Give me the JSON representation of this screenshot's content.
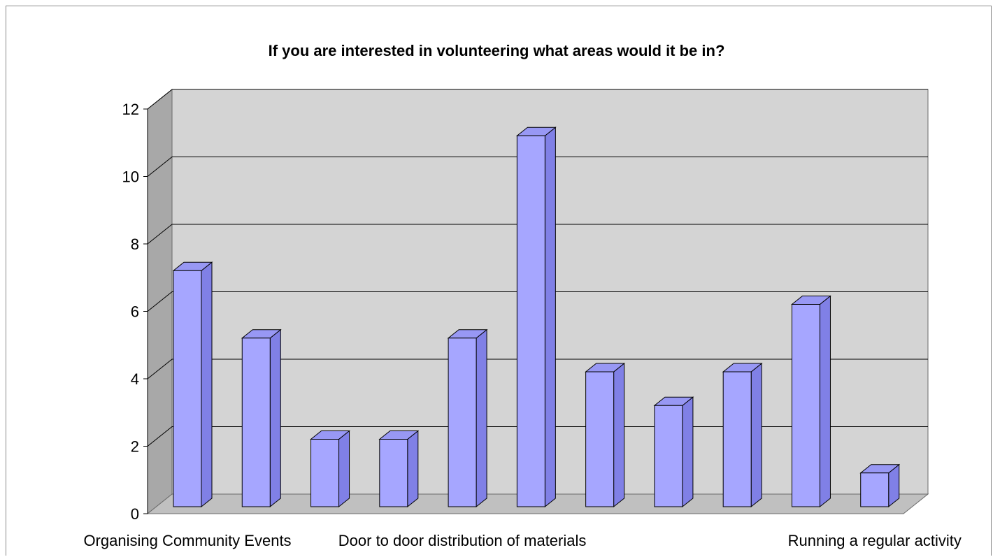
{
  "chart_data": {
    "type": "bar",
    "title": "If you are interested in volunteering what areas would it be in?",
    "categories": [
      "Organising Community Events",
      "",
      "",
      "",
      "Door to door distribution of materials",
      "",
      "",
      "",
      "",
      "",
      "Running a regular activity"
    ],
    "values": [
      7,
      5,
      2,
      2,
      5,
      11,
      4,
      3,
      4,
      6,
      1
    ],
    "ylim": [
      0,
      12
    ],
    "yticks": [
      0,
      2,
      4,
      6,
      8,
      10,
      12
    ],
    "xlabel": "",
    "ylabel": "",
    "grid": true,
    "legend": "none",
    "colors": {
      "bar_front": "#a6a6ff",
      "bar_side": "#8080e6",
      "bar_top": "#9898f4",
      "wall_back": "#d4d4d4",
      "wall_side": "#a8a8a8",
      "floor": "#c0c0c0",
      "gridline": "#000000"
    }
  }
}
